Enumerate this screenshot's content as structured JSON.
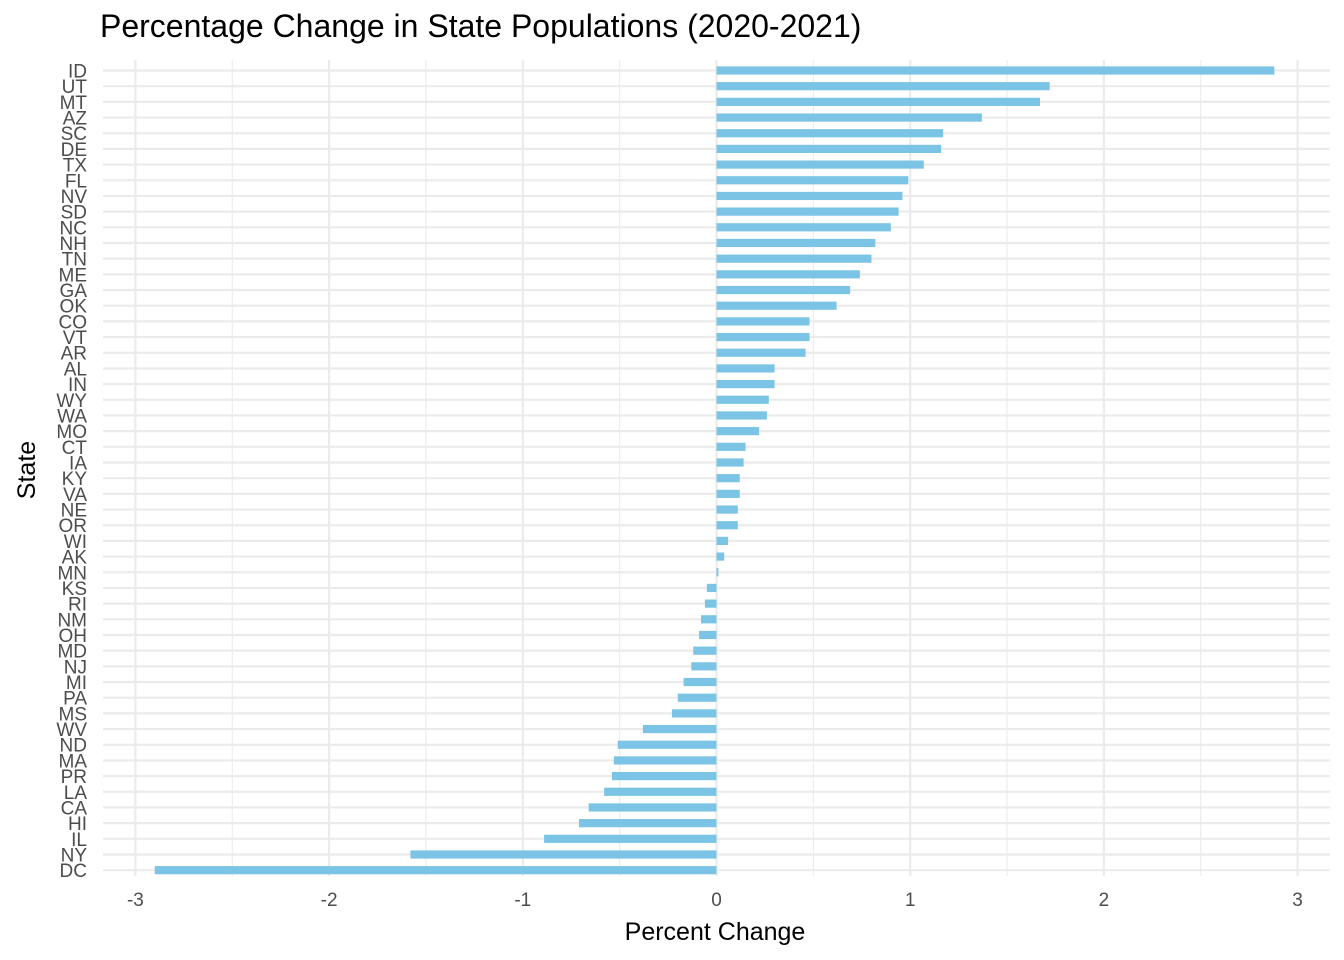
{
  "chart_data": {
    "type": "bar",
    "orientation": "horizontal",
    "title": "Percentage Change in State Populations (2020-2021)",
    "xlabel": "Percent Change",
    "ylabel": "State",
    "xlim": [
      -3.0,
      3.0
    ],
    "xticks": [
      -3,
      -2,
      -1,
      0,
      1,
      2,
      3
    ],
    "grid": true,
    "bar_color": "#7bc4e5",
    "grid_color": "#ebebeb",
    "categories": [
      "ID",
      "UT",
      "MT",
      "AZ",
      "SC",
      "DE",
      "TX",
      "FL",
      "NV",
      "SD",
      "NC",
      "NH",
      "TN",
      "ME",
      "GA",
      "OK",
      "CO",
      "VT",
      "AR",
      "AL",
      "IN",
      "WY",
      "WA",
      "MO",
      "CT",
      "IA",
      "KY",
      "VA",
      "NE",
      "OR",
      "WI",
      "AK",
      "MN",
      "KS",
      "RI",
      "NM",
      "OH",
      "MD",
      "NJ",
      "MI",
      "PA",
      "MS",
      "WV",
      "ND",
      "MA",
      "PR",
      "LA",
      "CA",
      "HI",
      "IL",
      "NY",
      "DC"
    ],
    "values": [
      2.88,
      1.72,
      1.67,
      1.37,
      1.17,
      1.16,
      1.07,
      0.99,
      0.96,
      0.94,
      0.9,
      0.82,
      0.8,
      0.74,
      0.69,
      0.62,
      0.48,
      0.48,
      0.46,
      0.3,
      0.3,
      0.27,
      0.26,
      0.22,
      0.15,
      0.14,
      0.12,
      0.12,
      0.11,
      0.11,
      0.06,
      0.04,
      0.01,
      -0.05,
      -0.06,
      -0.08,
      -0.09,
      -0.12,
      -0.13,
      -0.17,
      -0.2,
      -0.23,
      -0.38,
      -0.51,
      -0.53,
      -0.54,
      -0.58,
      -0.66,
      -0.71,
      -0.89,
      -1.58,
      -2.9
    ]
  }
}
